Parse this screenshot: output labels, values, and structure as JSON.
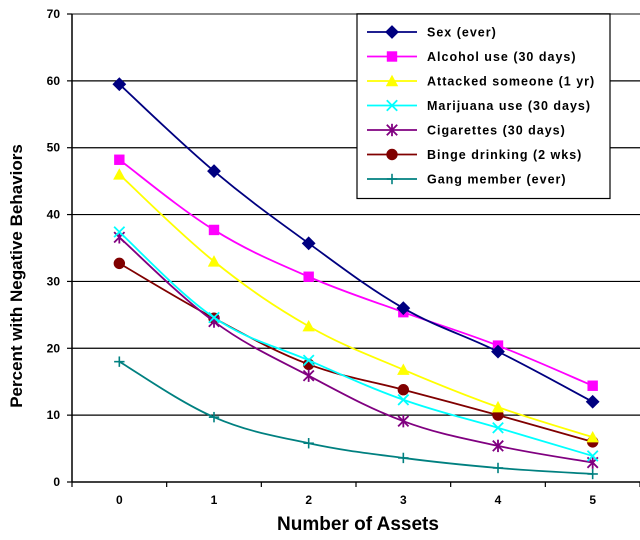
{
  "chart_data": {
    "type": "line",
    "xlabel": "Number of Assets",
    "ylabel": "Percent with Negative Behaviors",
    "x": [
      "0",
      "1",
      "2",
      "3",
      "4",
      "5"
    ],
    "ylim": [
      0,
      70
    ],
    "yticks": [
      "0",
      "10",
      "20",
      "30",
      "40",
      "50",
      "60",
      "70"
    ],
    "grid": "horizontal",
    "legend_position": "top-right",
    "series": [
      {
        "name": "Sex (ever)",
        "color": "#000080",
        "marker": "diamond",
        "values": [
          59.5,
          46.5,
          35.7,
          26.0,
          19.5,
          12.0
        ]
      },
      {
        "name": "Alcohol use (30 days)",
        "color": "#FF00FF",
        "marker": "square",
        "values": [
          48.2,
          37.7,
          30.7,
          25.4,
          20.4,
          14.4
        ]
      },
      {
        "name": "Attacked someone (1 yr)",
        "color": "#FFFF00",
        "marker": "triangle",
        "values": [
          46.0,
          33.0,
          23.3,
          16.8,
          11.2,
          6.7
        ]
      },
      {
        "name": "Marijuana use (30 days)",
        "color": "#00FFFF",
        "marker": "x",
        "values": [
          37.4,
          24.6,
          18.2,
          12.3,
          8.1,
          3.9
        ]
      },
      {
        "name": "Cigarettes (30 days)",
        "color": "#800080",
        "marker": "asterisk",
        "values": [
          36.6,
          24.0,
          15.9,
          9.1,
          5.4,
          2.9
        ]
      },
      {
        "name": "Binge drinking (2 wks)",
        "color": "#800000",
        "marker": "circle",
        "values": [
          32.7,
          24.5,
          17.6,
          13.8,
          10.0,
          6.0
        ]
      },
      {
        "name": "Gang member (ever)",
        "color": "#008080",
        "marker": "plus",
        "values": [
          18.0,
          9.7,
          5.8,
          3.6,
          2.1,
          1.2
        ]
      }
    ]
  }
}
